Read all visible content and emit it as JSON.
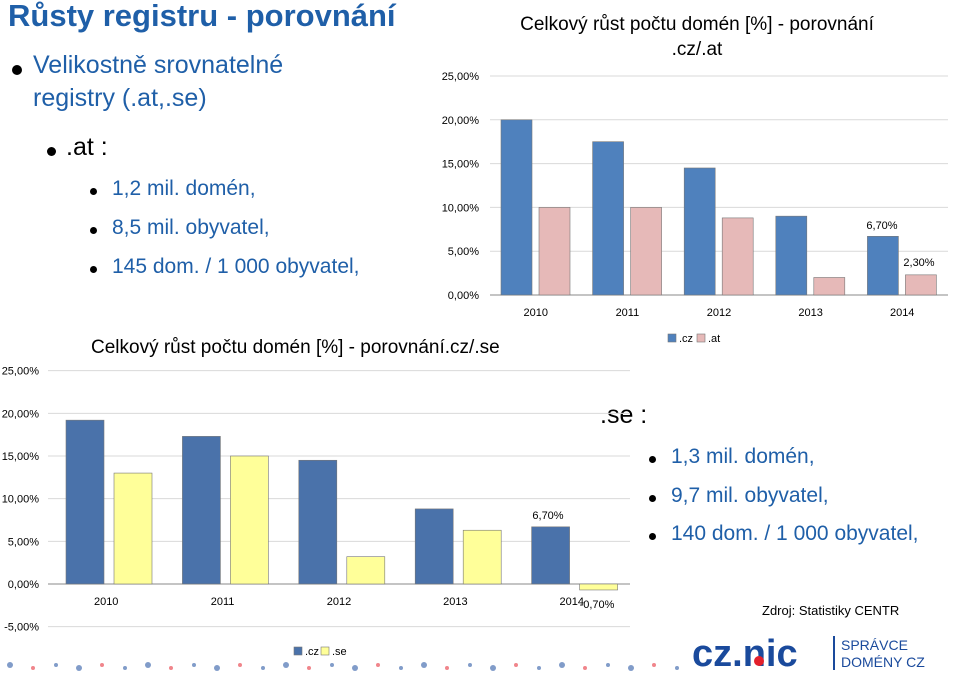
{
  "slide": {
    "title": "Růsty registru - porovnání",
    "intro_line1": "Velikostně srovnatelné",
    "intro_line2": "registry (.at,.se)",
    "at_heading": ".at :",
    "at_items": [
      "1,2 mil. domén,",
      "8,5 mil. obyvatel,",
      "145 dom. / 1 000 obyvatel,"
    ],
    "se_heading": ".se :",
    "se_items": [
      "1,3 mil. domén,",
      "9,7 mil. obyvatel,",
      "140 dom. / 1 000 obyvatel,"
    ],
    "source": "Zdroj: Statistiky CENTR",
    "logo_text": "cz.nic",
    "logo_sub1": "SPRÁVCE",
    "logo_sub2": "DOMÉNY CZ",
    "colors": {
      "title_blue": "#1f5fa8",
      "logo_blue": "#1a4a9c",
      "logo_red": "#e3202b"
    }
  },
  "chart_data": [
    {
      "type": "bar",
      "title_line1": "Celkový růst počtu domén [%] - porovnání",
      "title_line2": ".cz/.at",
      "categories": [
        "2010",
        "2011",
        "2012",
        "2013",
        "2014"
      ],
      "series": [
        {
          "name": ".cz",
          "values": [
            20.0,
            17.5,
            14.5,
            9.0,
            6.7
          ],
          "color": "#4f81bd"
        },
        {
          "name": ".at",
          "values": [
            10.0,
            10.0,
            8.8,
            2.0,
            2.3
          ],
          "color": "#e6b9b8"
        }
      ],
      "data_labels": {
        "cz_2014": "6,70%",
        "at_2014": "2,30%"
      },
      "ylim": [
        0,
        25
      ],
      "yticks": [
        "0,00%",
        "5,00%",
        "10,00%",
        "15,00%",
        "20,00%",
        "25,00%"
      ],
      "legend": "bottom"
    },
    {
      "type": "bar",
      "title": "Celkový růst počtu domén [%] - porovnání.cz/.se",
      "categories": [
        "2010",
        "2011",
        "2012",
        "2013",
        "2014"
      ],
      "series": [
        {
          "name": ".cz",
          "values": [
            19.2,
            17.3,
            14.5,
            8.8,
            6.7
          ],
          "color": "#4a72aa"
        },
        {
          "name": ".se",
          "values": [
            13.0,
            15.0,
            3.2,
            6.3,
            -0.7
          ],
          "color": "#ffff99"
        }
      ],
      "data_labels": {
        "cz_2014": "6,70%",
        "se_2014": "-0,70%"
      },
      "ylim": [
        -5,
        25
      ],
      "yticks": [
        "-5,00%",
        "0,00%",
        "5,00%",
        "10,00%",
        "15,00%",
        "20,00%",
        "25,00%"
      ],
      "legend": "bottom"
    }
  ]
}
